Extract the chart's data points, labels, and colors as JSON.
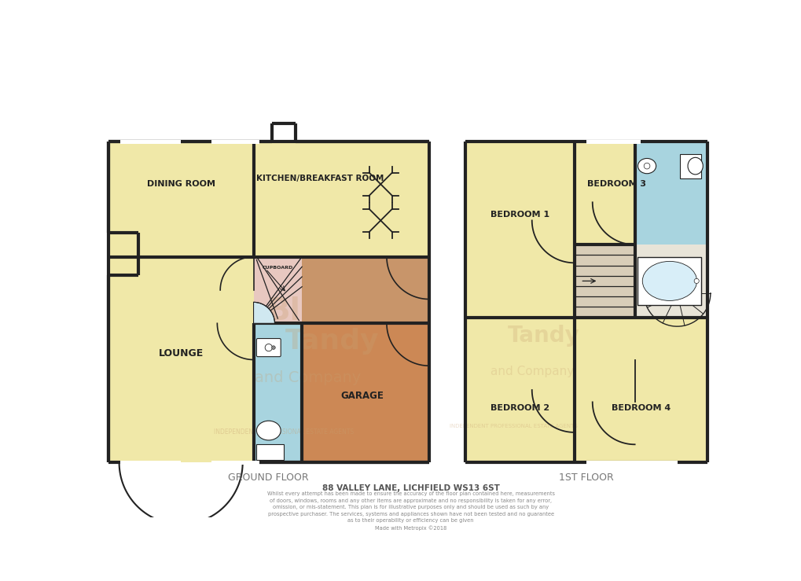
{
  "bg_color": "#ffffff",
  "wall_color": "#222222",
  "wall_lw": 3.0,
  "thin_lw": 1.2,
  "room_fill_yellow": "#f0e8a8",
  "room_fill_orange": "#cc8855",
  "room_fill_orange_light": "#c8956a",
  "room_fill_blue": "#a8d4df",
  "room_fill_pink": "#e8c8c0",
  "room_fill_landing": "#d8cdb8",
  "text_color": "#222222",
  "text_color_light": "#aaaaaa",
  "ground_floor_label": "GROUND FLOOR",
  "first_floor_label": "1ST FLOOR",
  "title_line": "88 VALLEY LANE, LICHFIELD WS13 6ST",
  "disclaimer_lines": [
    "Whilst every attempt has been made to ensure the accuracy of the floor plan contained here, measurements",
    "of doors, windows, rooms and any other items are approximate and no responsibility is taken for any error,",
    "omission, or mis-statement. This plan is for illustrative purposes only and should be used as such by any",
    "prospective purchaser. The services, systems and appliances shown have not been tested and no guarantee",
    "as to their operability or efficiency can be given",
    "Made with Metropix ©2018"
  ],
  "watermark_color": "#c8a070"
}
